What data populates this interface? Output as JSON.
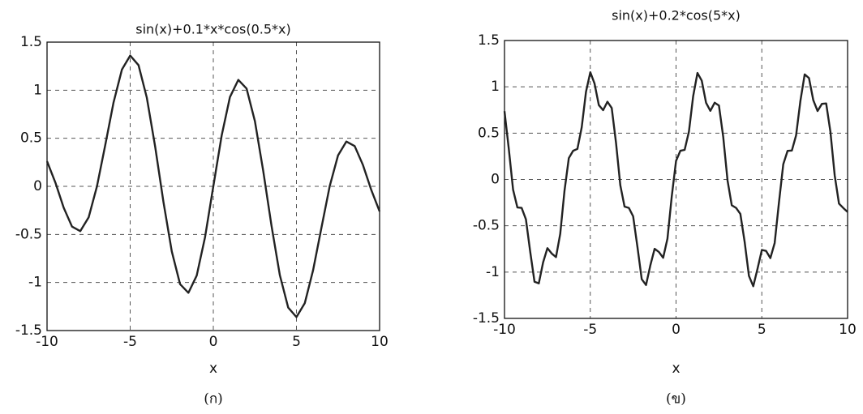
{
  "chart_data": [
    {
      "type": "line",
      "title": "sin(x)+0.1*x*cos(0.5*x)",
      "x_label": "x",
      "caption": "(ก)",
      "x": [
        -10,
        -9.5,
        -9,
        -8.5,
        -8,
        -7.5,
        -7,
        -6.5,
        -6,
        -5.5,
        -5,
        -4.5,
        -4,
        -3.5,
        -3,
        -2.5,
        -2,
        -1.5,
        -1,
        -0.5,
        0,
        0.5,
        1,
        1.5,
        2,
        2.5,
        3,
        3.5,
        4,
        4.5,
        5,
        5.5,
        6,
        6.5,
        7,
        7.5,
        8,
        8.5,
        9,
        9.5,
        10
      ],
      "values": [
        0.26,
        0.039,
        -0.222,
        -0.419,
        -0.466,
        -0.323,
        -0.002,
        0.431,
        0.873,
        1.214,
        1.36,
        1.261,
        0.923,
        0.413,
        -0.162,
        -0.677,
        -1.017,
        -1.107,
        -0.929,
        -0.528,
        0,
        0.528,
        0.929,
        1.107,
        1.017,
        0.677,
        0.162,
        -0.413,
        -0.923,
        -1.261,
        -1.36,
        -1.214,
        -0.873,
        -0.431,
        0.002,
        0.323,
        0.466,
        0.419,
        0.222,
        -0.039,
        -0.26
      ],
      "color": "#222222",
      "xlim": [
        -10,
        10
      ],
      "ylim": [
        -1.5,
        1.5
      ],
      "xticks": [
        -10,
        -5,
        0,
        5,
        10
      ],
      "yticks": [
        -1.5,
        -1,
        -0.5,
        0,
        0.5,
        1,
        1.5
      ],
      "grid": true
    },
    {
      "type": "line",
      "title": "sin(x)+0.2*cos(5*x)",
      "x_label": "x",
      "caption": "(ข)",
      "x": [
        -10,
        -9.75,
        -9.5,
        -9.25,
        -9,
        -8.75,
        -8.5,
        -8.25,
        -8,
        -7.75,
        -7.5,
        -7.25,
        -7,
        -6.75,
        -6.5,
        -6.25,
        -6,
        -5.75,
        -5.5,
        -5.25,
        -5,
        -4.75,
        -4.5,
        -4.25,
        -4,
        -3.75,
        -3.5,
        -3.25,
        -3,
        -2.75,
        -2.5,
        -2.25,
        -2,
        -1.75,
        -1.5,
        -1.25,
        -1,
        -0.75,
        -0.5,
        -0.25,
        0,
        0.25,
        0.5,
        0.75,
        1,
        1.25,
        1.5,
        1.75,
        2,
        2.25,
        2.5,
        2.75,
        3,
        3.25,
        3.5,
        3.75,
        4,
        4.25,
        4.5,
        4.75,
        5,
        5.25,
        5.5,
        5.75,
        6,
        6.25,
        6.5,
        6.75,
        7,
        7.25,
        7.5,
        7.75,
        8,
        8.25,
        8.5,
        8.75,
        9,
        9.25,
        9.5,
        9.75,
        10
      ],
      "values": [
        0.737,
        0.33,
        -0.111,
        -0.303,
        -0.307,
        -0.43,
        -0.78,
        -1.105,
        -1.122,
        -0.896,
        -0.742,
        -0.799,
        -0.838,
        -0.588,
        -0.121,
        0.23,
        0.31,
        0.33,
        0.563,
        0.947,
        1.157,
        1.036,
        0.803,
        0.748,
        0.839,
        0.771,
        0.395,
        -0.063,
        -0.293,
        -0.307,
        -0.398,
        -0.728,
        -1.077,
        -1.14,
        -0.928,
        -0.749,
        -0.784,
        -0.846,
        -0.639,
        -0.184,
        0.2,
        0.31,
        0.319,
        0.518,
        0.898,
        1.149,
        1.066,
        0.828,
        0.741,
        0.828,
        0.798,
        0.457,
        -0.011,
        -0.279,
        -0.307,
        -0.373,
        -0.675,
        -1.042,
        -1.153,
        -0.962,
        -0.761,
        -0.771,
        -0.849,
        -0.686,
        -0.248,
        0.164,
        0.309,
        0.312,
        0.476,
        0.847,
        1.134,
        1.094,
        0.856,
        0.739,
        0.816,
        0.82,
        0.517,
        0.045,
        -0.261,
        -0.308,
        -0.351
      ],
      "color": "#222222",
      "xlim": [
        -10,
        10
      ],
      "ylim": [
        -1.5,
        1.5
      ],
      "xticks": [
        -10,
        -5,
        0,
        5,
        10
      ],
      "yticks": [
        -1.5,
        -1,
        -0.5,
        0,
        0.5,
        1,
        1.5
      ],
      "grid": true
    }
  ]
}
